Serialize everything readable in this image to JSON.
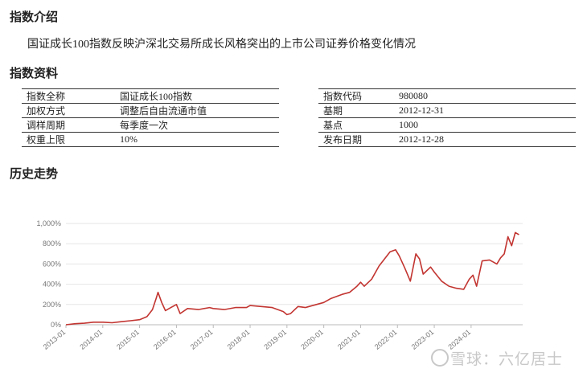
{
  "sections": {
    "intro_title": "指数介绍",
    "profile_title": "指数资料",
    "history_title": "历史走势"
  },
  "intro_text": "国证成长100指数反映沪深北交易所成长风格突出的上市公司证券价格变化情况",
  "profile_left": [
    {
      "label": "指数全称",
      "value": "国证成长100指数"
    },
    {
      "label": "加权方式",
      "value": "调整后自由流通市值"
    },
    {
      "label": "调样周期",
      "value": "每季度一次"
    },
    {
      "label": "权重上限",
      "value": "10%"
    }
  ],
  "profile_right": [
    {
      "label": "指数代码",
      "value": "980080"
    },
    {
      "label": "基期",
      "value": "2012-12-31"
    },
    {
      "label": "基点",
      "value": "1000"
    },
    {
      "label": "发布日期",
      "value": "2012-12-28"
    }
  ],
  "watermark": "雪球：六亿居士",
  "chart_data": {
    "type": "line",
    "color": "#c23531",
    "ylim": [
      0,
      1000
    ],
    "y_ticks": [
      "0%",
      "200%",
      "400%",
      "600%",
      "800%",
      "1,000%"
    ],
    "y_tick_values": [
      0,
      200,
      400,
      600,
      800,
      1000
    ],
    "x_ticks": [
      "2013-01",
      "2014-01",
      "2015-01",
      "2016-01",
      "2017-01",
      "2018-01",
      "2019-01",
      "2020-01",
      "2021-01",
      "2022-01",
      "2023-01",
      "2024-01"
    ],
    "series": [
      {
        "x": [
          2013.0,
          2013.25,
          2013.5,
          2013.75,
          2014.0,
          2014.25,
          2014.5,
          2014.75,
          2015.0,
          2015.2,
          2015.35,
          2015.45,
          2015.5,
          2015.6,
          2015.7,
          2015.85,
          2016.0,
          2016.1,
          2016.3,
          2016.6,
          2016.9,
          2017.0,
          2017.3,
          2017.6,
          2017.9,
          2018.0,
          2018.3,
          2018.6,
          2018.9,
          2019.0,
          2019.1,
          2019.3,
          2019.5,
          2019.8,
          2020.0,
          2020.2,
          2020.5,
          2020.7,
          2020.9,
          2021.0,
          2021.1,
          2021.3,
          2021.5,
          2021.8,
          2021.95,
          2022.05,
          2022.2,
          2022.35,
          2022.5,
          2022.6,
          2022.7,
          2022.9,
          2023.0,
          2023.2,
          2023.4,
          2023.6,
          2023.8,
          2023.95,
          2024.05,
          2024.15,
          2024.3,
          2024.5,
          2024.7,
          2024.8,
          2024.9,
          2025.0,
          2025.1,
          2025.2,
          2025.3
        ],
        "values": [
          0,
          10,
          15,
          25,
          25,
          20,
          30,
          40,
          50,
          80,
          150,
          260,
          320,
          220,
          140,
          170,
          200,
          110,
          160,
          150,
          170,
          160,
          150,
          170,
          170,
          190,
          180,
          170,
          130,
          100,
          110,
          180,
          170,
          200,
          220,
          260,
          300,
          320,
          380,
          420,
          380,
          450,
          580,
          720,
          740,
          680,
          560,
          430,
          700,
          650,
          500,
          570,
          520,
          430,
          380,
          360,
          350,
          450,
          490,
          380,
          630,
          640,
          600,
          660,
          700,
          870,
          780,
          910,
          890
        ]
      }
    ]
  }
}
